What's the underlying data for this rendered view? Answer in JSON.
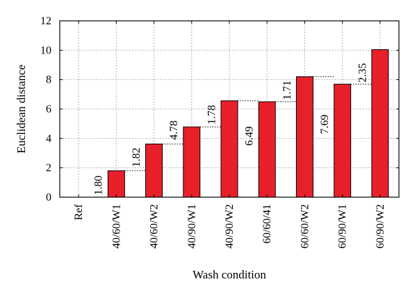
{
  "chart_data": {
    "type": "bar",
    "xlabel": "Wash condition",
    "ylabel": "Euclidean distance",
    "ylim": [
      0,
      12
    ],
    "yticks": [
      0,
      2,
      4,
      6,
      8,
      10,
      12
    ],
    "grid": true,
    "bar_color": "#e8202a",
    "categories": [
      "Ref",
      "40/60/W1",
      "40/60/W2",
      "40/90/W1",
      "40/90/W2",
      "60/60/41",
      "60/60/W2",
      "60/90/W1",
      "60/90/W2"
    ],
    "values": [
      0,
      1.8,
      3.62,
      4.78,
      6.56,
      6.49,
      8.2,
      7.69,
      10.04
    ],
    "annotations": [
      "1.80",
      "1.82",
      "4.78",
      "1.78",
      "6.49",
      "1.71",
      "7.69",
      "2.35"
    ]
  }
}
